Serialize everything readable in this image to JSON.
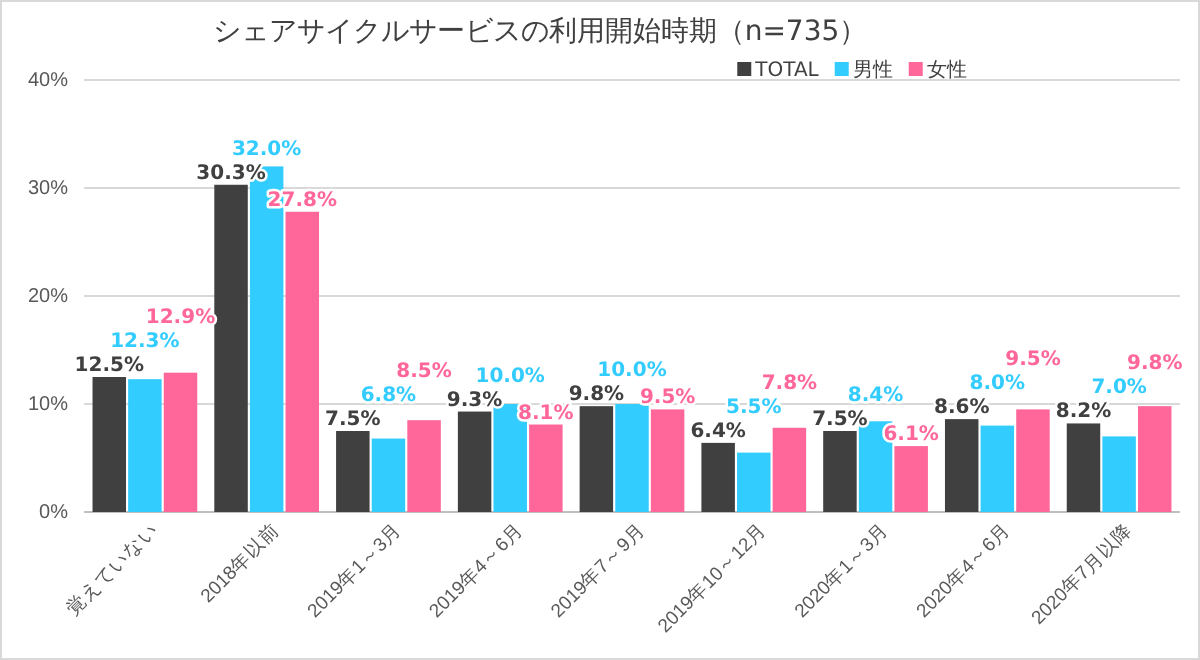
{
  "chart_data": {
    "type": "bar",
    "title": "シェアサイクルサービスの利用開始時期（n=735）",
    "categories": [
      "覚えていない",
      "2018年以前",
      "2019年1～3月",
      "2019年4～6月",
      "2019年7～9月",
      "2019年10～12月",
      "2020年1～3月",
      "2020年4～6月",
      "2020年7月以降"
    ],
    "series": [
      {
        "name": "TOTAL",
        "color": "#404040",
        "values": [
          12.5,
          30.3,
          7.5,
          9.3,
          9.8,
          6.4,
          7.5,
          8.6,
          8.2
        ],
        "value_labels": [
          "12.5%",
          "30.3%",
          "7.5%",
          "9.3%",
          "9.8%",
          "6.4%",
          "7.5%",
          "8.6%",
          "8.2%"
        ]
      },
      {
        "name": "男性",
        "color": "#33ccff",
        "values": [
          12.3,
          32.0,
          6.8,
          10.0,
          10.0,
          5.5,
          8.4,
          8.0,
          7.0
        ],
        "value_labels": [
          "12.3%",
          "32.0%",
          "6.8%",
          "10.0%",
          "10.0%",
          "5.5%",
          "8.4%",
          "8.0%",
          "7.0%"
        ]
      },
      {
        "name": "女性",
        "color": "#ff6699",
        "values": [
          12.9,
          27.8,
          8.5,
          8.1,
          9.5,
          7.8,
          6.1,
          9.5,
          9.8
        ],
        "value_labels": [
          "12.9%",
          "27.8%",
          "8.5%",
          "8.1%",
          "9.5%",
          "7.8%",
          "6.1%",
          "9.5%",
          "9.8%"
        ]
      }
    ],
    "ylim": [
      0,
      40
    ],
    "yticks": [
      {
        "value": 0,
        "label": "0%"
      },
      {
        "value": 10,
        "label": "10%"
      },
      {
        "value": 20,
        "label": "20%"
      },
      {
        "value": 30,
        "label": "30%"
      },
      {
        "value": 40,
        "label": "40%"
      }
    ],
    "grid": "y",
    "legend": "top right"
  }
}
